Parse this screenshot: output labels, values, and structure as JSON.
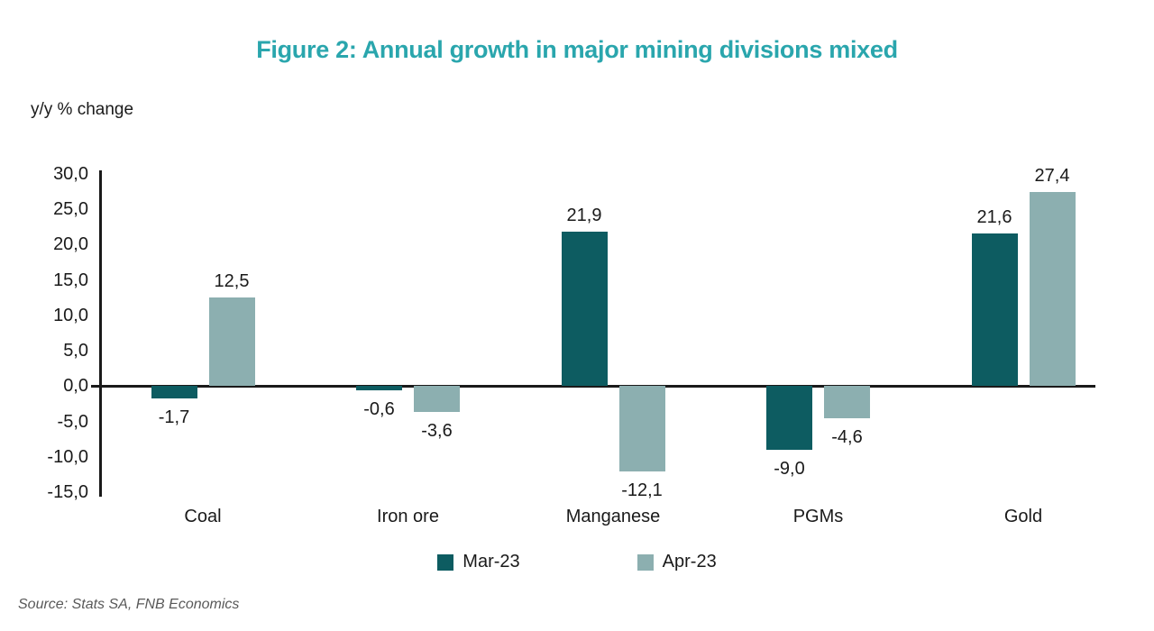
{
  "figure": {
    "title": "Figure 2: Annual growth in major mining divisions mixed",
    "ylabel": "y/y % change",
    "source": "Source: Stats SA, FNB Economics"
  },
  "colors": {
    "title_accent": "#2AA6AD",
    "series_mar23": "#0D5C61",
    "series_apr23": "#8CAFB0",
    "axis": "#1A1A1A",
    "source_text": "#595959"
  },
  "chart_data": {
    "type": "bar",
    "categories": [
      "Coal",
      "Iron ore",
      "Manganese",
      "PGMs",
      "Gold"
    ],
    "series": [
      {
        "name": "Mar-23",
        "color": "#0D5C61",
        "values": [
          -1.7,
          -0.6,
          21.9,
          -9.0,
          21.6
        ]
      },
      {
        "name": "Apr-23",
        "color": "#8CAFB0",
        "values": [
          12.5,
          -3.6,
          -12.1,
          -4.6,
          27.4
        ]
      }
    ],
    "value_labels": [
      [
        "-1,7",
        "-0,6",
        "21,9",
        "-9,0",
        "21,6"
      ],
      [
        "12,5",
        "-3,6",
        "-12,1",
        "-4,6",
        "27,4"
      ]
    ],
    "title": "Figure 2: Annual growth in major mining divisions mixed",
    "xlabel": "",
    "ylabel": "y/y % change",
    "ylim": [
      -15,
      30
    ],
    "ytick_step": 5,
    "ytick_labels": [
      "30,0",
      "25,0",
      "20,0",
      "15,0",
      "10,0",
      "5,0",
      "0,0",
      "-5,0",
      "-10,0",
      "-15,0"
    ],
    "decimal_separator": ",",
    "grid": false,
    "legend_position": "bottom"
  }
}
